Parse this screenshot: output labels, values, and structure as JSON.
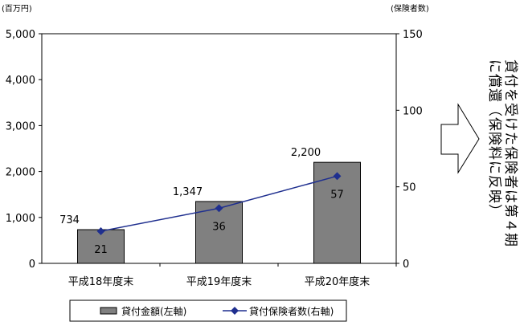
{
  "chart_data": {
    "type": "bar",
    "categories": [
      "平成18年度末",
      "平成19年度末",
      "平成20年度末"
    ],
    "series": [
      {
        "name": "貸付金額(左軸)",
        "type": "bar",
        "axis": "left",
        "values": [
          734,
          1347,
          2200
        ],
        "color": "#808080"
      },
      {
        "name": "貸付保険者数(右軸)",
        "type": "line",
        "axis": "right",
        "values": [
          21,
          36,
          57
        ],
        "color": "#1f2f8f"
      }
    ],
    "left_axis": {
      "unit": "(百万円)",
      "min": 0,
      "max": 5000,
      "step": 1000
    },
    "right_axis": {
      "unit": "(保険者数)",
      "min": 0,
      "max": 150,
      "step": 50
    },
    "legend_position": "bottom",
    "grid": false
  },
  "side_note": {
    "lines": [
      "貸付を受けた保険者は第４期",
      "に償還（保険料に反映）"
    ]
  },
  "icons": {
    "arrow": "right-arrow-icon"
  }
}
